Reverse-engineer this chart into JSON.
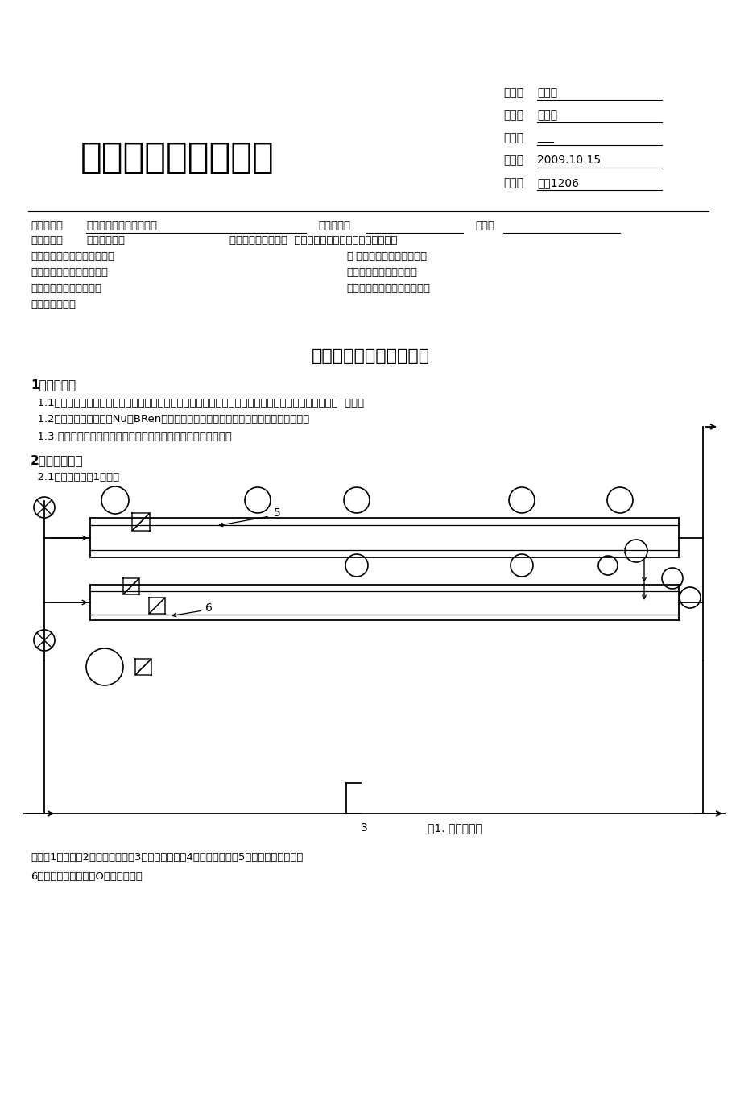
{
  "bg_color": "#ffffff",
  "title_main": "溯户丄、唆实验报告",
  "info_label1": "专业：",
  "info_val1": "高分子",
  "info_label2": "姓名：",
  "info_val2": "吴钰龙",
  "info_label3": "学号：",
  "info_val3": "___",
  "info_label4": "日期：",
  "info_val4": "2009.10.15",
  "info_label5": "地点：",
  "info_val5": "教十1206",
  "course_label": "课程名称：",
  "course_val": "过程工程原理实验（乙）",
  "teacher_label": "指导老师：",
  "grade_label": "成绩：",
  "expname_label": "实验名称：",
  "expname_val": "传热综合实验",
  "exptype": "实验类型：工程实验  同组学生姓名：张子宽、王浩、任欣",
  "item1L": "一、实验目的和要求（必填）",
  "item1R": "二.实验内容和原理（必填）",
  "item2L": "三、主要仪器设备（必填）",
  "item2R": "四、操作方法和实验步骤",
  "item3L": "五、实验数据记录和处理",
  "item3R": "六、实验结果与分析（必填）",
  "item4L": "七、讨论、心得",
  "sec_title": "横管对流传热系数的测定",
  "sec1_hdr": "1实验目的：",
  "sec1_p1": "  1.1掌握空气在普通和强化传热管内的对流传热系数的测定方法，了解影响传热系数的因素和强化传热的  途径。",
  "sec1_p2": "  1.2把测得的数据整理成Nu＝BRen形式的准数方程式，并与教材中相应公式进行比较。",
  "sec1_p3": "  1.3 了解温度、加热功率、空气流量的自动控制原理和使用方法。",
  "sec2_hdr": "2装置与流程：",
  "sec2_sub": "  2.1实验装置如图1所示：",
  "fig_cap": "图1. 装置示意图",
  "fig_num3": "3",
  "leg1": "其中：1－风机；2－蒸汽发生器；3－孔板流量计；4－压差传感器；5－普通套管换热器；",
  "leg2": "6－强化套管换热器；O－温度传感器"
}
